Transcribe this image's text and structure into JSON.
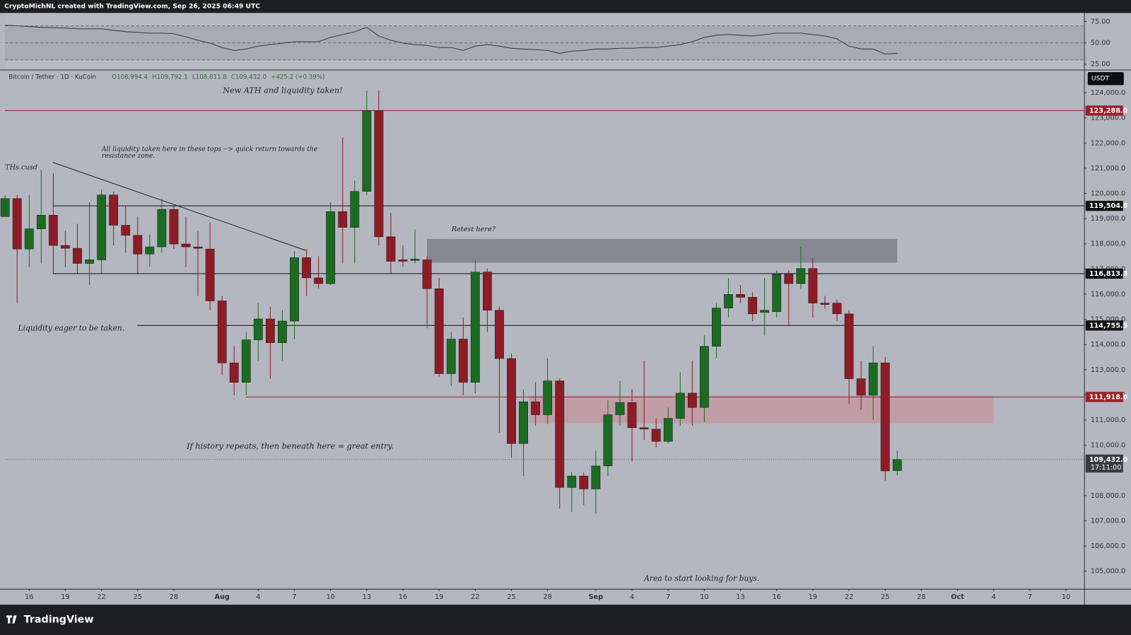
{
  "header": {
    "credit": "CryptoMichNL created with TradingView.com, Sep 26, 2025 06:49 UTC",
    "brand": "TradingView"
  },
  "chart_data": [
    {
      "type": "candlestick",
      "title": "Bitcoin / Tether · 1D · KuCoin",
      "ohlc_labels": [
        "O108,994.4",
        "H109,792.1",
        "L108,811.8",
        "C109,432.0"
      ],
      "change": "+425.2 (+0.39%)",
      "currency": "USDT",
      "up_color": "#1c6b22",
      "down_color": "#8d1c26",
      "x": [
        0,
        1,
        2,
        3,
        4,
        5,
        6,
        7,
        8,
        9,
        10,
        11,
        12,
        13,
        14,
        15,
        16,
        17,
        18,
        19,
        20,
        21,
        22,
        23,
        24,
        25,
        26,
        27,
        28,
        29,
        30,
        31,
        32,
        33,
        34,
        35,
        36,
        37,
        38,
        39,
        40,
        41,
        42,
        43,
        44,
        45,
        46,
        47,
        48,
        49,
        50,
        51,
        52,
        53,
        54,
        55,
        56,
        57,
        58,
        59,
        60,
        61,
        62,
        63,
        64,
        65,
        66,
        67,
        68,
        69,
        70,
        71,
        72,
        73,
        74
      ],
      "open": [
        119080,
        119794,
        117792,
        118593,
        119136,
        117935,
        117821,
        117220,
        117363,
        119937,
        118736,
        118335,
        117591,
        117878,
        119365,
        117992,
        117878,
        117792,
        115732,
        113271,
        112499,
        114187,
        115017,
        114072,
        114931,
        117449,
        116647,
        116418,
        119279,
        118650,
        120080,
        123285,
        118278,
        117363,
        117334,
        117363,
        116218,
        112842,
        114216,
        112499,
        116876,
        115360,
        113443,
        110067,
        111726,
        111211,
        112556,
        108322,
        108779,
        108265,
        109180,
        111211,
        111698,
        110697,
        110639,
        110153,
        111068,
        112070,
        111498,
        113929,
        115446,
        115989,
        115875,
        115274,
        115303,
        116790,
        116418,
        117020,
        115646,
        115646,
        115217,
        112642,
        111984,
        113271,
        108994.4
      ],
      "high": [
        119937,
        119937,
        119937,
        120939,
        120796,
        118507,
        118793,
        119651,
        120166,
        120080,
        119508,
        119079,
        118364,
        119794,
        119508,
        119079,
        118507,
        118850,
        115932,
        113929,
        114502,
        115646,
        115503,
        115360,
        117706,
        117792,
        117506,
        119651,
        122226,
        120510,
        124086,
        124086,
        119222,
        117935,
        118564,
        117506,
        116647,
        114502,
        115074,
        117363,
        117020,
        115503,
        113643,
        112213,
        112499,
        113443,
        112642,
        108922,
        108922,
        109781,
        111784,
        112556,
        112213,
        113357,
        111068,
        111498,
        112899,
        113357,
        114359,
        115646,
        116647,
        116361,
        116075,
        116647,
        116933,
        116933,
        117878,
        117420,
        115932,
        115789,
        115360,
        113357,
        113929,
        113500,
        109792.1
      ],
      "low": [
        119080,
        115646,
        117077,
        117221,
        116790,
        117077,
        116790,
        116361,
        116790,
        117935,
        117649,
        116790,
        117077,
        117649,
        117792,
        117077,
        115932,
        115360,
        112785,
        111984,
        111984,
        113357,
        112642,
        113357,
        114216,
        115932,
        116218,
        116361,
        117221,
        117221,
        119937,
        117935,
        116790,
        117077,
        117220,
        114645,
        112727,
        112356,
        111984,
        112070,
        114502,
        110496,
        109495,
        108779,
        110782,
        110839,
        107492,
        107349,
        107635,
        107292,
        108779,
        110782,
        109352,
        110210,
        109924,
        110067,
        110782,
        110782,
        110925,
        113443,
        115074,
        115646,
        114931,
        114359,
        115074,
        114731,
        116218,
        115074,
        115417,
        114931,
        111641,
        111412,
        111011,
        108579,
        108811.8
      ],
      "close": [
        119794,
        117792,
        118593,
        119136,
        117935,
        117821,
        117220,
        117363,
        119937,
        118736,
        118335,
        117591,
        117878,
        119365,
        117992,
        117878,
        117821,
        115732,
        113271,
        112499,
        114187,
        115017,
        114072,
        114931,
        117449,
        116647,
        116418,
        119279,
        118650,
        120080,
        123285,
        118278,
        117306,
        117306,
        117392,
        116218,
        112842,
        114216,
        112499,
        116876,
        115360,
        113443,
        110067,
        111726,
        111211,
        112556,
        108322,
        108779,
        108265,
        109180,
        111211,
        111698,
        110697,
        110639,
        110153,
        111068,
        112070,
        111498,
        113929,
        115446,
        115989,
        115875,
        115217,
        115360,
        116790,
        116418,
        117020,
        115646,
        115589,
        115217,
        112642,
        111984,
        113271,
        108980,
        109432.0
      ],
      "xlim": [
        0,
        89.5
      ],
      "xticks": [
        {
          "value": 2,
          "label": "16"
        },
        {
          "value": 5,
          "label": "19"
        },
        {
          "value": 8,
          "label": "22"
        },
        {
          "value": 11,
          "label": "25"
        },
        {
          "value": 14,
          "label": "28"
        },
        {
          "value": 18,
          "label": "Aug"
        },
        {
          "value": 21,
          "label": "4"
        },
        {
          "value": 24,
          "label": "7"
        },
        {
          "value": 27,
          "label": "10"
        },
        {
          "value": 30,
          "label": "13"
        },
        {
          "value": 33,
          "label": "16"
        },
        {
          "value": 36,
          "label": "19"
        },
        {
          "value": 39,
          "label": "22"
        },
        {
          "value": 42,
          "label": "25"
        },
        {
          "value": 45,
          "label": "28"
        },
        {
          "value": 49,
          "label": "Sep"
        },
        {
          "value": 52,
          "label": "4"
        },
        {
          "value": 55,
          "label": "7"
        },
        {
          "value": 58,
          "label": "10"
        },
        {
          "value": 61,
          "label": "13"
        },
        {
          "value": 64,
          "label": "16"
        },
        {
          "value": 67,
          "label": "19"
        },
        {
          "value": 70,
          "label": "22"
        },
        {
          "value": 73,
          "label": "25"
        },
        {
          "value": 76,
          "label": "28"
        },
        {
          "value": 79,
          "label": "Oct"
        },
        {
          "value": 82,
          "label": "4"
        },
        {
          "value": 85,
          "label": "7"
        },
        {
          "value": 88,
          "label": "10"
        }
      ],
      "ylim": [
        104300,
        124900
      ],
      "yticks": [
        {
          "value": 124000,
          "label": "124,000.0"
        },
        {
          "value": 123000,
          "label": "123,000.0"
        },
        {
          "value": 122000,
          "label": "122,000.0"
        },
        {
          "value": 121000,
          "label": "121,000.0"
        },
        {
          "value": 120000,
          "label": "120,000.0"
        },
        {
          "value": 119000,
          "label": "119,000.0"
        },
        {
          "value": 118000,
          "label": "118,000.0"
        },
        {
          "value": 117000,
          "label": "117,000.0"
        },
        {
          "value": 116000,
          "label": "116,000.0"
        },
        {
          "value": 115000,
          "label": "115,000.0"
        },
        {
          "value": 114000,
          "label": "114,000.0"
        },
        {
          "value": 113000,
          "label": "113,000.0"
        },
        {
          "value": 112000,
          "label": "112,000.0"
        },
        {
          "value": 111000,
          "label": "111,000.0"
        },
        {
          "value": 110000,
          "label": "110,000.0"
        },
        {
          "value": 108000,
          "label": "108,000.0"
        },
        {
          "value": 107000,
          "label": "107,000.0"
        },
        {
          "value": 106000,
          "label": "106,000.0"
        },
        {
          "value": 105000,
          "label": "105,000.0"
        }
      ],
      "levels": [
        {
          "value": 123288.0,
          "label": "123,288.0",
          "color": "#9c1f2a"
        },
        {
          "value": 119504.8,
          "label": "119,504.8",
          "color": "#111111"
        },
        {
          "value": 116813.3,
          "label": "116,813.3",
          "color": "#111111"
        },
        {
          "value": 114755.5,
          "label": "114,755.5",
          "color": "#111111"
        },
        {
          "value": 111918.6,
          "label": "111,918.6",
          "color": "#9c1f2a"
        }
      ],
      "last_price": {
        "value": 109432.0,
        "label": "109,432.0"
      },
      "countdown": "17:11:00",
      "zones": [
        {
          "low": 117248,
          "high": 118192,
          "start": 35,
          "end": 74,
          "color": "#7e8088"
        },
        {
          "low": 110868,
          "high": 111955,
          "start": 43.5,
          "end": 82,
          "color": "#c39aa2"
        }
      ],
      "annotations": [
        "New ATH and liquidity taken!",
        "All liquidity taken here in these tops --> quick return towards the",
        "resistance zone.",
        "THs.cusd",
        "Liquidity eager to be taken.",
        "Retest here?",
        "If history repeats, then beneath here = great entry.",
        "Area to start looking for buys."
      ]
    },
    {
      "type": "line",
      "color": "#3a3d44",
      "x": [
        0,
        1,
        2,
        3,
        4,
        5,
        6,
        7,
        8,
        9,
        10,
        11,
        12,
        13,
        14,
        15,
        16,
        17,
        18,
        19,
        20,
        21,
        22,
        23,
        24,
        25,
        26,
        27,
        28,
        29,
        30,
        31,
        32,
        33,
        34,
        35,
        36,
        37,
        38,
        39,
        40,
        41,
        42,
        43,
        44,
        45,
        46,
        47,
        48,
        49,
        50,
        51,
        52,
        53,
        54,
        55,
        56,
        57,
        58,
        59,
        60,
        61,
        62,
        63,
        64,
        65,
        66,
        67,
        68,
        69,
        70,
        71,
        72,
        73,
        74
      ],
      "values": [
        70.8,
        69.9,
        69.1,
        68.2,
        67.8,
        67.4,
        66.5,
        66.5,
        66.5,
        64.8,
        63.1,
        62.3,
        61.4,
        61.4,
        60.6,
        57.2,
        53.0,
        49.6,
        44.5,
        41.1,
        42.8,
        46.2,
        47.9,
        49.6,
        51.3,
        51.3,
        51.3,
        56.4,
        59.7,
        63.1,
        68.2,
        58.1,
        53.0,
        49.6,
        47.9,
        47.0,
        44.5,
        44.5,
        41.1,
        46.2,
        47.9,
        46.2,
        43.6,
        42.8,
        42.0,
        41.1,
        37.7,
        40.3,
        41.1,
        42.8,
        42.8,
        43.6,
        43.6,
        44.5,
        44.5,
        46.2,
        47.9,
        51.3,
        56.4,
        58.9,
        59.7,
        58.9,
        58.1,
        59.7,
        61.4,
        61.4,
        61.4,
        59.7,
        58.1,
        54.7,
        46.2,
        42.8,
        42.8,
        36.9,
        37.7
      ],
      "xlim": [
        0,
        89.5
      ],
      "ylim": [
        19,
        85
      ],
      "yticks": [
        {
          "value": 75,
          "label": "75.00"
        },
        {
          "value": 50,
          "label": "50.00"
        },
        {
          "value": 25,
          "label": "25.00"
        }
      ],
      "band": [
        30,
        70
      ],
      "midline": 50
    }
  ]
}
